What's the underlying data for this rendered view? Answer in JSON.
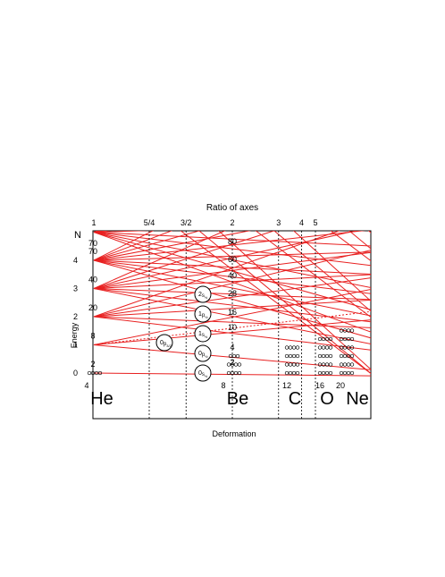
{
  "title": "Ratio of axes",
  "xlabel": "Deformation",
  "ylabel": "Energy",
  "n_header": "N",
  "colors": {
    "line": "#e82020",
    "axis": "#000000",
    "guide": "#000000"
  },
  "ratio_ticks": [
    {
      "label": "1",
      "u": 0
    },
    {
      "label": "5/4",
      "u": 0.2
    },
    {
      "label": "3/2",
      "u": 0.333
    },
    {
      "label": "2",
      "u": 0.5
    },
    {
      "label": "3",
      "u": 0.667
    },
    {
      "label": "4",
      "u": 0.75
    },
    {
      "label": "5",
      "u": 0.8
    }
  ],
  "n_ticks": [
    "0",
    "1",
    "2",
    "3",
    "4"
  ],
  "degeneracy_left": [
    "2",
    "8",
    "20",
    "40",
    "70"
  ],
  "magic_at_ratio2": [
    "2",
    "4",
    "10",
    "16",
    "28",
    "40",
    "60",
    "80"
  ],
  "orbitals": [
    {
      "main": "0",
      "sub": "s",
      "subsub": "½"
    },
    {
      "main": "0",
      "sub": "p",
      "subsub": "½"
    },
    {
      "main": "1",
      "sub": "s",
      "subsub": "½"
    },
    {
      "main": "1",
      "sub": "p",
      "subsub": "½"
    },
    {
      "main": "2",
      "sub": "s",
      "subsub": "½"
    },
    {
      "main": "0",
      "sub": "p",
      "subsub": "3/2"
    }
  ],
  "nuclei": [
    {
      "name": "He",
      "mass": "4"
    },
    {
      "name": "Be",
      "mass": "8"
    },
    {
      "name": "C",
      "mass": "12"
    },
    {
      "name": "O",
      "mass": "16"
    },
    {
      "name": "Ne",
      "mass": "20"
    }
  ],
  "clusters": [
    {
      "nucleus": "He",
      "rows": [
        4
      ]
    },
    {
      "nucleus": "Be",
      "rows": [
        4,
        4,
        3
      ]
    },
    {
      "nucleus": "C",
      "rows": [
        4,
        4,
        4,
        4
      ]
    },
    {
      "nucleus": "O",
      "rows": [
        4,
        4,
        4,
        4,
        4
      ]
    },
    {
      "nucleus": "Ne",
      "rows": [
        4,
        4,
        4,
        4,
        4,
        4
      ]
    }
  ]
}
